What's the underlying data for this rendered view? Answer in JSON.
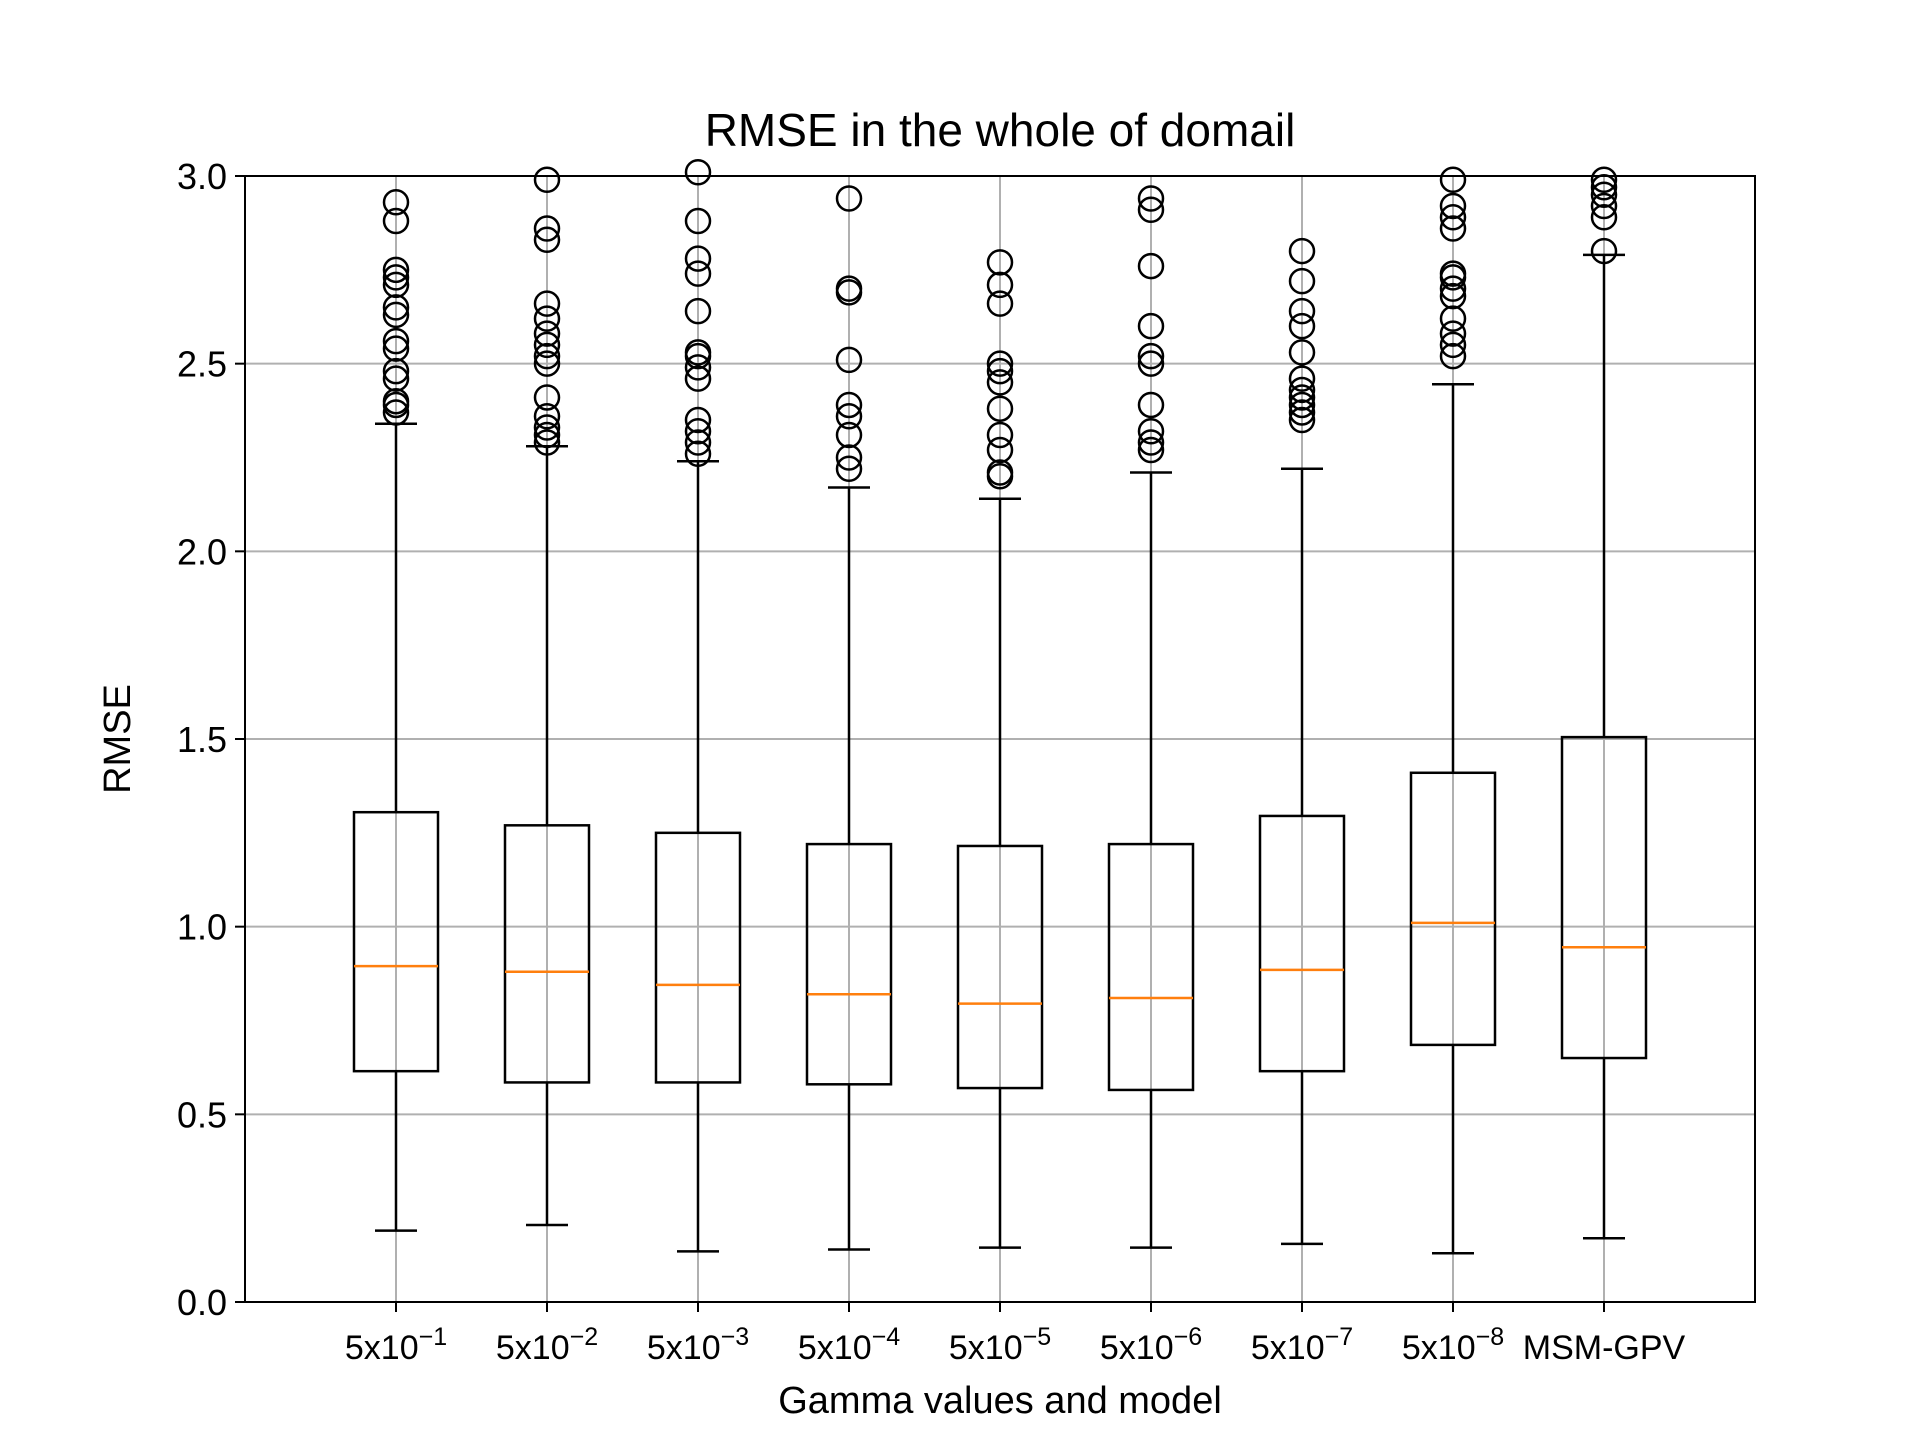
{
  "chart_data": {
    "type": "box",
    "title": "RMSE in the whole of domail",
    "xlabel": "Gamma values and model",
    "ylabel": "RMSE",
    "ylim": [
      0.0,
      3.0
    ],
    "yticks": [
      "0.0",
      "0.5",
      "1.0",
      "1.5",
      "2.0",
      "2.5",
      "3.0"
    ],
    "ytick_values": [
      0.0,
      0.5,
      1.0,
      1.5,
      2.0,
      2.5,
      3.0
    ],
    "grid": true,
    "categories": [
      {
        "base": "5x10",
        "exp": "−1"
      },
      {
        "base": "5x10",
        "exp": "−2"
      },
      {
        "base": "5x10",
        "exp": "−3"
      },
      {
        "base": "5x10",
        "exp": "−4"
      },
      {
        "base": "5x10",
        "exp": "−5"
      },
      {
        "base": "5x10",
        "exp": "−6"
      },
      {
        "base": "5x10",
        "exp": "−7"
      },
      {
        "base": "5x10",
        "exp": "−8"
      },
      {
        "base": "MSM-GPV",
        "exp": ""
      }
    ],
    "boxes": [
      {
        "whisker_low": 0.19,
        "q1": 0.615,
        "median": 0.895,
        "q3": 1.305,
        "whisker_high": 2.34,
        "fliers": [
          2.37,
          2.39,
          2.4,
          2.46,
          2.48,
          2.54,
          2.56,
          2.63,
          2.65,
          2.71,
          2.73,
          2.75,
          2.88,
          2.93
        ]
      },
      {
        "whisker_low": 0.205,
        "q1": 0.585,
        "median": 0.88,
        "q3": 1.27,
        "whisker_high": 2.28,
        "fliers": [
          2.29,
          2.31,
          2.33,
          2.36,
          2.41,
          2.5,
          2.52,
          2.55,
          2.58,
          2.62,
          2.66,
          2.83,
          2.86,
          2.99
        ]
      },
      {
        "whisker_low": 0.135,
        "q1": 0.585,
        "median": 0.845,
        "q3": 1.25,
        "whisker_high": 2.24,
        "fliers": [
          2.26,
          2.29,
          2.32,
          2.35,
          2.46,
          2.49,
          2.52,
          2.53,
          2.64,
          2.74,
          2.78,
          2.88,
          3.01
        ]
      },
      {
        "whisker_low": 0.14,
        "q1": 0.58,
        "median": 0.82,
        "q3": 1.22,
        "whisker_high": 2.17,
        "fliers": [
          2.22,
          2.25,
          2.31,
          2.36,
          2.39,
          2.51,
          2.69,
          2.7,
          2.94
        ]
      },
      {
        "whisker_low": 0.145,
        "q1": 0.57,
        "median": 0.795,
        "q3": 1.215,
        "whisker_high": 2.14,
        "fliers": [
          2.2,
          2.21,
          2.27,
          2.31,
          2.38,
          2.45,
          2.48,
          2.5,
          2.66,
          2.71,
          2.77
        ]
      },
      {
        "whisker_low": 0.145,
        "q1": 0.565,
        "median": 0.81,
        "q3": 1.22,
        "whisker_high": 2.21,
        "fliers": [
          2.27,
          2.29,
          2.32,
          2.39,
          2.5,
          2.52,
          2.6,
          2.76,
          2.91,
          2.94
        ]
      },
      {
        "whisker_low": 0.155,
        "q1": 0.615,
        "median": 0.885,
        "q3": 1.295,
        "whisker_high": 2.22,
        "fliers": [
          2.35,
          2.37,
          2.39,
          2.41,
          2.43,
          2.46,
          2.53,
          2.6,
          2.64,
          2.72,
          2.8
        ]
      },
      {
        "whisker_low": 0.13,
        "q1": 0.685,
        "median": 1.01,
        "q3": 1.41,
        "whisker_high": 2.445,
        "fliers": [
          2.52,
          2.55,
          2.58,
          2.62,
          2.68,
          2.7,
          2.73,
          2.74,
          2.86,
          2.89,
          2.92,
          2.99
        ]
      },
      {
        "whisker_low": 0.17,
        "q1": 0.65,
        "median": 0.945,
        "q3": 1.505,
        "whisker_high": 2.79,
        "fliers": [
          2.8,
          2.89,
          2.92,
          2.95,
          2.97,
          2.99
        ]
      }
    ],
    "colors": {
      "box": "#000000",
      "median": "#ff7f0e",
      "grid": "#b0b0b0"
    }
  }
}
